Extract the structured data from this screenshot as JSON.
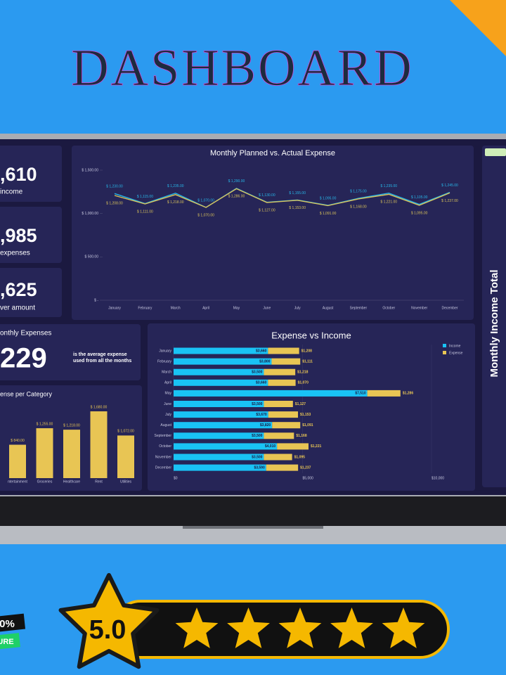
{
  "header": {
    "title": "DASHBOARD"
  },
  "kpis": [
    {
      "value": ",610",
      "label": "income"
    },
    {
      "value": ",985",
      "label": "expenses"
    },
    {
      "value": ",625",
      "label": "ver amount"
    }
  ],
  "average": {
    "title": "onthly Expenses",
    "value": "229",
    "note": "is the average expense used from all the months"
  },
  "line_chart": {
    "type": "line",
    "title": "Monthly Planned vs. Actual Expense",
    "categories": [
      "January",
      "February",
      "March",
      "April",
      "May",
      "June",
      "July",
      "August",
      "September",
      "October",
      "November",
      "December"
    ],
    "series": [
      {
        "color": "#27b6e8",
        "values": [
          1230,
          1115,
          1235,
          1070,
          1290,
          1130,
          1155,
          1095,
          1175,
          1235,
          1105,
          1245
        ],
        "value_labels": [
          "$ 1,230.00",
          "$ 1,115.00",
          "$ 1,235.00",
          "$ 1,070.00",
          "$ 1,290.00",
          "$ 1,130.00",
          "$ 1,155.00",
          "$ 1,095.00",
          "$ 1,175.00",
          "$ 1,235.00",
          "$ 1,105.00",
          "$ 1,245.00"
        ]
      },
      {
        "color": "#d9c25a",
        "values": [
          1208,
          1111,
          1218,
          1070,
          1286,
          1127,
          1153,
          1091,
          1168,
          1221,
          1095,
          1237
        ],
        "value_labels": [
          "$ 1,208.00",
          "$ 1,111.00",
          "$ 1,218.00",
          "$ 1,070.00",
          "$ 1,286.00",
          "$ 1,127.00",
          "$ 1,153.00",
          "$ 1,091.00",
          "$ 1,168.00",
          "$ 1,221.00",
          "$ 1,095.00",
          "$ 1,237.00"
        ]
      }
    ],
    "ylim": [
      0,
      1500
    ],
    "yticks": [
      {
        "value": 0,
        "label": "$ -"
      },
      {
        "value": 500,
        "label": "$ 500.00"
      },
      {
        "value": 1000,
        "label": "$ 1,000.00"
      },
      {
        "value": 1500,
        "label": "$ 1,500.00"
      }
    ]
  },
  "bar_chart": {
    "type": "bar",
    "orientation": "horizontal",
    "stacked": true,
    "title": "Expense vs Income",
    "categories": [
      "January",
      "February",
      "March",
      "April",
      "May",
      "June",
      "July",
      "August",
      "September",
      "October",
      "November",
      "December"
    ],
    "series": [
      {
        "name": "Income",
        "color": "#19c3f5",
        "values": [
          3660,
          3800,
          3500,
          3660,
          7510,
          3500,
          3670,
          3820,
          3500,
          4010,
          3500,
          3590
        ],
        "value_labels": [
          "$3,660",
          "$3,800",
          "$3,500",
          "$3,660",
          "$7,510",
          "$3,500",
          "$3,670",
          "$3,820",
          "$3,500",
          "$4,010",
          "$3,500",
          "$3,590"
        ]
      },
      {
        "name": "Expense",
        "color": "#e8c554",
        "values": [
          1208,
          1111,
          1218,
          1070,
          1286,
          1127,
          1153,
          1091,
          1168,
          1221,
          1095,
          1237
        ],
        "value_labels": [
          "$1,208",
          "$1,111",
          "$1,218",
          "$1,070",
          "$1,286",
          "$1,127",
          "$1,153",
          "$1,091",
          "$1,168",
          "$1,221",
          "$1,095",
          "$1,237"
        ]
      }
    ],
    "xlim": [
      0,
      10000
    ],
    "xticks": [
      {
        "value": 0,
        "label": "$0"
      },
      {
        "value": 5000,
        "label": "$5,000"
      },
      {
        "value": 10000,
        "label": "$10,000"
      }
    ]
  },
  "category_chart": {
    "type": "bar",
    "title": "ense per Category",
    "color": "#e8c554",
    "categories": [
      "ntertainment",
      "Groceries",
      "Healthcare",
      "Rent",
      "Utilities"
    ],
    "values": [
      840,
      1255,
      1218,
      1680,
      1072
    ],
    "value_labels": [
      "$ 840.00",
      "$ 1,255.00",
      "$ 1,218.00",
      "$ 1,680.00",
      "$ 1,072.00"
    ]
  },
  "side_panel": {
    "title": "Monthly Income Total"
  },
  "rating": {
    "score": "5.0",
    "stars": 5
  },
  "badge": {
    "line1": "0%",
    "line2": "URE"
  }
}
